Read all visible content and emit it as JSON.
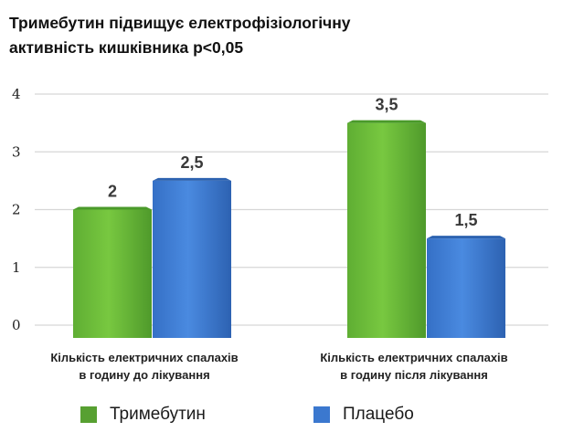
{
  "chart_data": {
    "type": "bar",
    "title_lines": [
      "Тримебутин підвищує електрофізіологічну",
      "активність кишківника p<0,05"
    ],
    "categories": [
      [
        "Кількість електричних спалахів",
        "в годину до лікування"
      ],
      [
        "Кількість електричних спалахів",
        "в годину після лікування"
      ]
    ],
    "series": [
      {
        "name": "Тримебутин",
        "values": [
          2,
          3.5
        ],
        "labels": [
          "2",
          "3,5"
        ],
        "color": "#6cbf3c"
      },
      {
        "name": "Плацебо",
        "values": [
          2.5,
          1.5
        ],
        "labels": [
          "2,5",
          "1,5"
        ],
        "color": "#3f7fd6"
      }
    ],
    "y_ticks": [
      "0",
      "1",
      "2",
      "3",
      "4"
    ],
    "ylim": [
      0,
      4
    ],
    "grid": true,
    "legend_position": "bottom"
  },
  "colors": {
    "green_dark": "#4a9a2a",
    "blue_dark": "#2c62b0",
    "legend_green": "#57a031",
    "legend_blue": "#3b78cf"
  }
}
